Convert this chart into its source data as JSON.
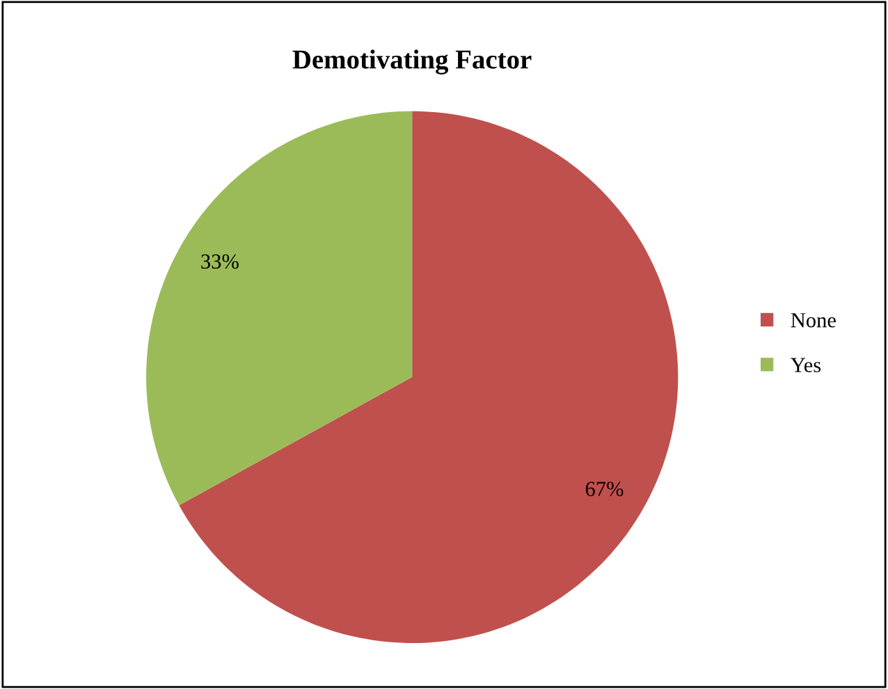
{
  "chart_data": {
    "type": "pie",
    "title": "Demotivating Factor",
    "categories": [
      "None",
      "Yes"
    ],
    "values": [
      67,
      33
    ],
    "colors": [
      "#c0504d",
      "#9bbb59"
    ],
    "value_labels": [
      "67%",
      "33%"
    ],
    "legend": "right"
  }
}
